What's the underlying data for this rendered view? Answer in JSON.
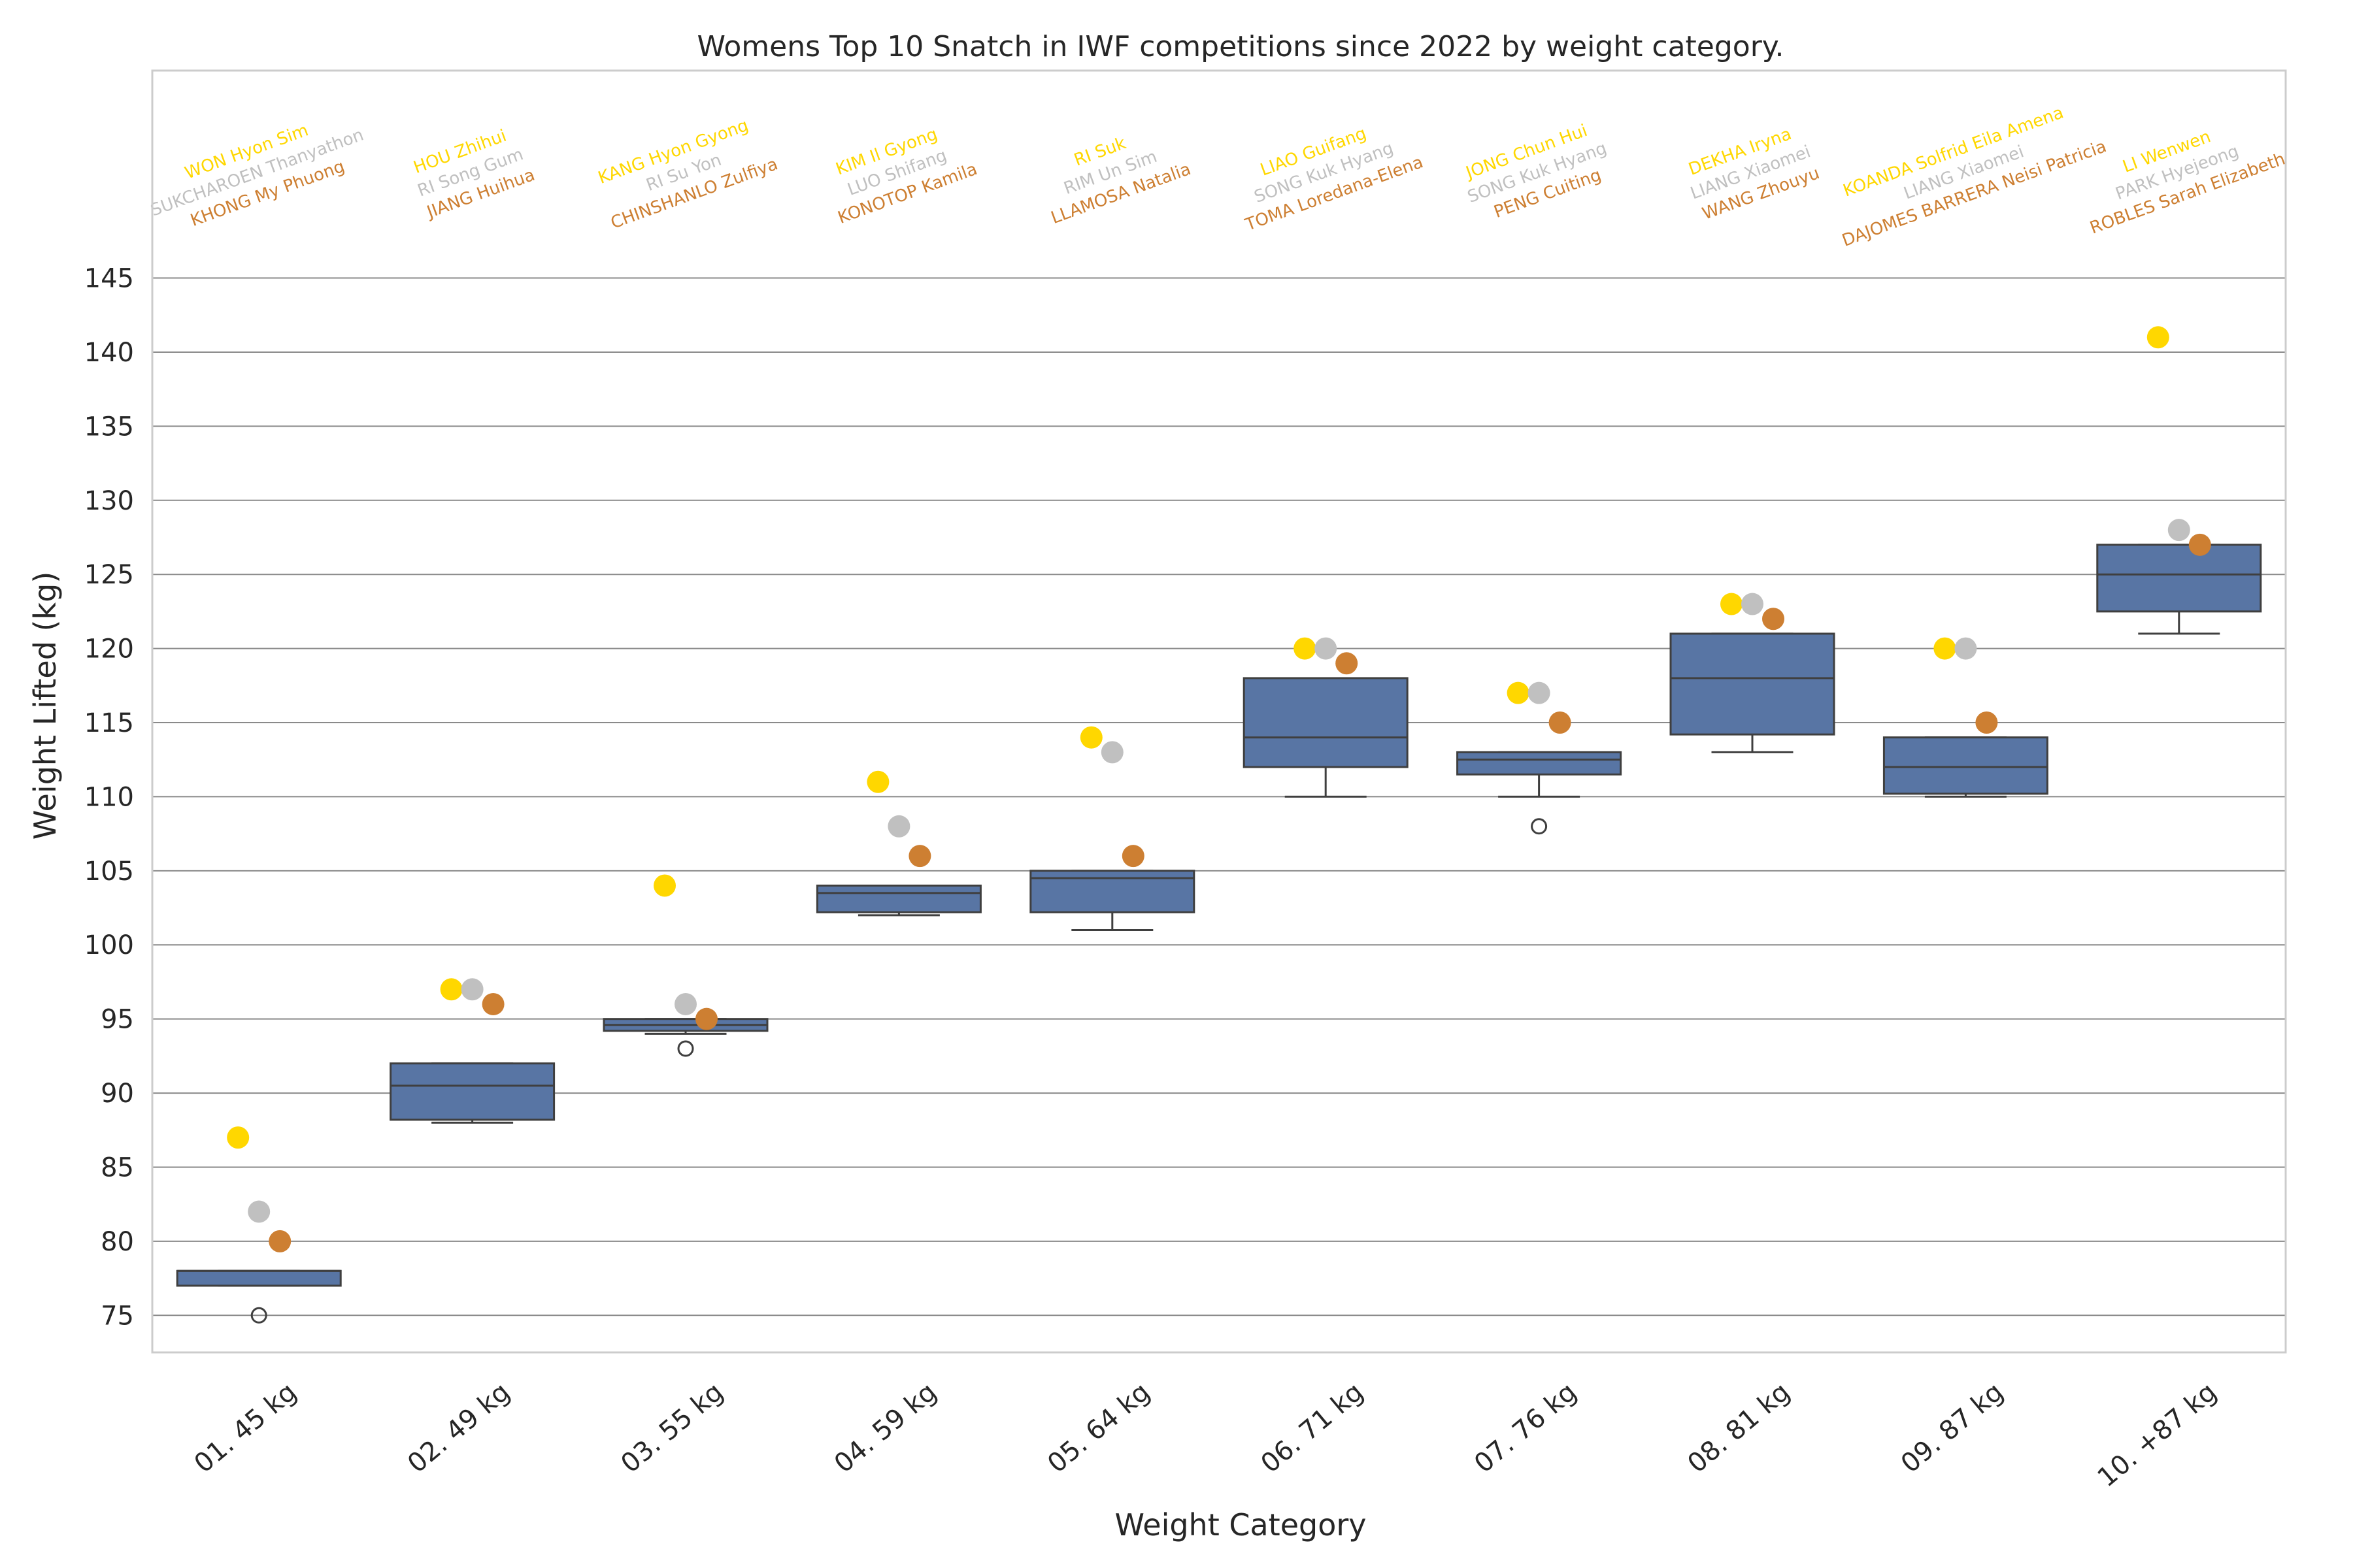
{
  "chart_data": {
    "type": "box",
    "title": "Womens Top 10 Snatch in IWF competitions since 2022 by weight category.",
    "xlabel": "Weight Category",
    "ylabel": "Weight Lifted (kg)",
    "ylim": [
      72.5,
      159
    ],
    "yticks": [
      75,
      80,
      85,
      90,
      95,
      100,
      105,
      110,
      115,
      120,
      125,
      130,
      135,
      140,
      145
    ],
    "grid": true,
    "colors": {
      "box": "#5875a4",
      "box_edge": "#3f3f3f",
      "gold": "#ffd700",
      "silver": "#c0c0c0",
      "bronze": "#cd7f32",
      "grid": "#8a8a8a",
      "frame": "#cccccc",
      "text": "#262626"
    },
    "categories": [
      "01. 45 kg",
      "02. 49 kg",
      "03. 55 kg",
      "04. 59 kg",
      "05. 64 kg",
      "06. 71 kg",
      "07. 76 kg",
      "08. 81 kg",
      "09. 87 kg",
      "10. +87 kg"
    ],
    "boxes": [
      {
        "category": "01. 45 kg",
        "whislo": 77,
        "q1": 77,
        "med": 78,
        "q3": 78,
        "whishi": 78,
        "fliers": [
          75
        ]
      },
      {
        "category": "02. 49 kg",
        "whislo": 88,
        "q1": 88.2,
        "med": 90.5,
        "q3": 92,
        "whishi": 92,
        "fliers": []
      },
      {
        "category": "03. 55 kg",
        "whislo": 94,
        "q1": 94.2,
        "med": 94.6,
        "q3": 95,
        "whishi": 95,
        "fliers": [
          93
        ]
      },
      {
        "category": "04. 59 kg",
        "whislo": 102,
        "q1": 102.2,
        "med": 103.5,
        "q3": 104,
        "whishi": 104,
        "fliers": []
      },
      {
        "category": "05. 64 kg",
        "whislo": 101,
        "q1": 102.2,
        "med": 104.5,
        "q3": 105,
        "whishi": 105,
        "fliers": []
      },
      {
        "category": "06. 71 kg",
        "whislo": 110,
        "q1": 112,
        "med": 114,
        "q3": 118,
        "whishi": 118,
        "fliers": []
      },
      {
        "category": "07. 76 kg",
        "whislo": 110,
        "q1": 111.5,
        "med": 112.5,
        "q3": 113,
        "whishi": 113,
        "fliers": [
          108
        ]
      },
      {
        "category": "08. 81 kg",
        "whislo": 113,
        "q1": 114.2,
        "med": 118,
        "q3": 121,
        "whishi": 121,
        "fliers": []
      },
      {
        "category": "09. 87 kg",
        "whislo": 110,
        "q1": 110.2,
        "med": 112,
        "q3": 114,
        "whishi": 114,
        "fliers": []
      },
      {
        "category": "10. +87 kg",
        "whislo": 121,
        "q1": 122.5,
        "med": 125,
        "q3": 127,
        "whishi": 127,
        "fliers": []
      }
    ],
    "medals": [
      {
        "category": "01. 45 kg",
        "gold": {
          "value": 87,
          "name": "WON Hyon Sim"
        },
        "silver": {
          "value": 82,
          "name": "SUKCHAROEN Thanyathon"
        },
        "bronze": {
          "value": 80,
          "name": "KHONG My Phuong"
        }
      },
      {
        "category": "02. 49 kg",
        "gold": {
          "value": 97,
          "name": "HOU Zhihui"
        },
        "silver": {
          "value": 97,
          "name": "RI Song Gum"
        },
        "bronze": {
          "value": 96,
          "name": "JIANG Huihua"
        }
      },
      {
        "category": "03. 55 kg",
        "gold": {
          "value": 104,
          "name": "KANG Hyon Gyong"
        },
        "silver": {
          "value": 96,
          "name": "RI Su Yon"
        },
        "bronze": {
          "value": 95,
          "name": "CHINSHANLO Zulfiya"
        }
      },
      {
        "category": "04. 59 kg",
        "gold": {
          "value": 111,
          "name": "KIM Il Gyong"
        },
        "silver": {
          "value": 108,
          "name": "LUO Shifang"
        },
        "bronze": {
          "value": 106,
          "name": "KONOTOP Kamila"
        }
      },
      {
        "category": "05. 64 kg",
        "gold": {
          "value": 114,
          "name": "RI Suk"
        },
        "silver": {
          "value": 113,
          "name": "RIM Un Sim"
        },
        "bronze": {
          "value": 106,
          "name": "LLAMOSA Natalia"
        }
      },
      {
        "category": "06. 71 kg",
        "gold": {
          "value": 120,
          "name": "LIAO Guifang"
        },
        "silver": {
          "value": 120,
          "name": "SONG Kuk Hyang"
        },
        "bronze": {
          "value": 119,
          "name": "TOMA Loredana-Elena"
        }
      },
      {
        "category": "07. 76 kg",
        "gold": {
          "value": 117,
          "name": "JONG Chun Hui"
        },
        "silver": {
          "value": 117,
          "name": "SONG Kuk Hyang"
        },
        "bronze": {
          "value": 115,
          "name": "PENG Cuiting"
        }
      },
      {
        "category": "08. 81 kg",
        "gold": {
          "value": 123,
          "name": "DEKHA Iryna"
        },
        "silver": {
          "value": 123,
          "name": "LIANG Xiaomei"
        },
        "bronze": {
          "value": 122,
          "name": "WANG Zhouyu"
        }
      },
      {
        "category": "09. 87 kg",
        "gold": {
          "value": 120,
          "name": "KOANDA Solfrid Eila Amena"
        },
        "silver": {
          "value": 120,
          "name": "LIANG Xiaomei"
        },
        "bronze": {
          "value": 115,
          "name": "DAJOMES BARRERA Neisi Patricia"
        }
      },
      {
        "category": "10. +87 kg",
        "gold": {
          "value": 141,
          "name": "LI Wenwen"
        },
        "silver": {
          "value": 128,
          "name": "PARK Hyejeong"
        },
        "bronze": {
          "value": 127,
          "name": "ROBLES Sarah Elizabeth"
        }
      }
    ]
  }
}
